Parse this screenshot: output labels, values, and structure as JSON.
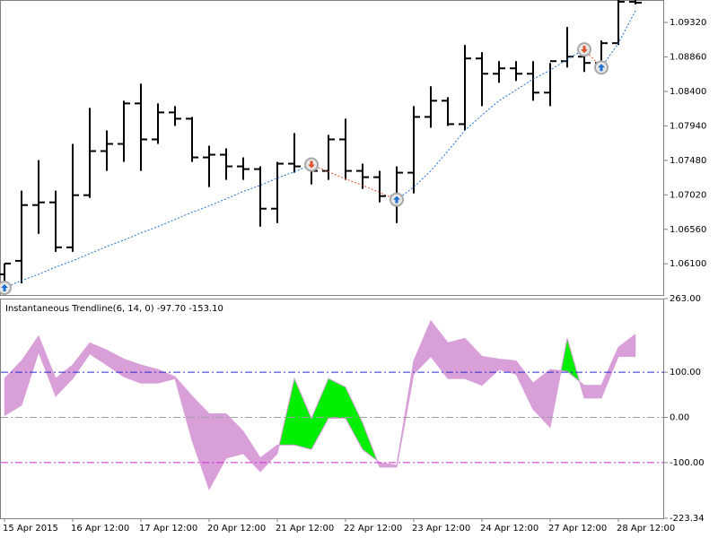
{
  "chart_data": [
    {
      "type": "ohlc",
      "categories": [
        "15 Apr 2015",
        null,
        null,
        null,
        "16 Apr 12:00",
        null,
        null,
        null,
        "17 Apr 12:00",
        null,
        null,
        null,
        "20 Apr 12:00",
        null,
        null,
        null,
        "21 Apr 12:00",
        null,
        null,
        null,
        "22 Apr 12:00",
        null,
        null,
        null,
        "23 Apr 12:00",
        null,
        null,
        null,
        "24 Apr 12:00",
        null,
        null,
        null,
        "27 Apr 12:00",
        null,
        null,
        null,
        "28 Apr 12:00",
        null
      ],
      "open": [
        1.0596,
        1.0614,
        1.06884,
        1.0692,
        1.0632,
        1.07016,
        1.07604,
        1.077,
        1.0824,
        1.0776,
        1.0812,
        1.08036,
        1.0752,
        1.07556,
        1.074,
        1.07364,
        1.06836,
        1.07436,
        1.074,
        1.0734,
        1.0776,
        1.0734,
        1.07256,
        1.07004,
        1.07316,
        1.0806,
        1.08276,
        1.07964,
        1.0884,
        1.08636,
        1.08708,
        1.08636,
        1.08384,
        1.08804,
        1.08864,
        1.0878,
        1.09044,
        1.09596
      ],
      "high": [
        1.06104,
        1.07076,
        1.07484,
        1.07076,
        1.077,
        1.0818,
        1.0788,
        1.08276,
        1.08504,
        1.0824,
        1.08204,
        1.0806,
        1.07676,
        1.0764,
        1.0752,
        1.074,
        1.0746,
        1.07844,
        1.074,
        1.0782,
        1.08036,
        1.07436,
        1.0734,
        1.074,
        1.08204,
        1.08468,
        1.08324,
        1.0902,
        1.08924,
        1.08804,
        1.08804,
        1.08804,
        1.0878,
        1.0926,
        1.089,
        1.0908,
        1.0962,
        1.0962
      ],
      "low": [
        1.05804,
        1.0584,
        1.065,
        1.0626,
        1.0626,
        1.0698,
        1.0734,
        1.0746,
        1.0734,
        1.077,
        1.0794,
        1.0746,
        1.07124,
        1.0722,
        1.0722,
        1.06596,
        1.06644,
        1.07316,
        1.0716,
        1.0722,
        1.0722,
        1.071,
        1.0692,
        1.06644,
        1.0704,
        1.07916,
        1.0794,
        1.0788,
        1.08204,
        1.08516,
        1.0854,
        1.08276,
        1.08204,
        1.0872,
        1.0866,
        1.0866,
        1.0902,
        1.0956
      ],
      "close": [
        1.06104,
        1.06884,
        1.0692,
        1.0632,
        1.07016,
        1.07604,
        1.077,
        1.0824,
        1.0776,
        1.0812,
        1.08036,
        1.0752,
        1.07556,
        1.074,
        1.07364,
        1.06836,
        1.07436,
        1.074,
        1.0734,
        1.0776,
        1.0734,
        1.07256,
        1.07004,
        1.07316,
        1.0806,
        1.08276,
        1.07964,
        1.0884,
        1.08636,
        1.08708,
        1.08636,
        1.08384,
        1.08804,
        1.08864,
        1.0878,
        1.09044,
        1.09596,
        1.09584
      ],
      "color": "#000000",
      "trend": [
        1.0578,
        1.05876,
        1.0596,
        1.06056,
        1.0614,
        1.06236,
        1.06332,
        1.06416,
        1.06512,
        1.06596,
        1.06692,
        1.06788,
        1.06872,
        1.06968,
        1.07064,
        1.07148,
        1.07244,
        1.07328,
        1.07424,
        1.07328,
        1.07232,
        1.07148,
        1.07052,
        1.06956,
        1.07124,
        1.0734,
        1.07604,
        1.0788,
        1.08084,
        1.08276,
        1.0842,
        1.08564,
        1.08684,
        1.08828,
        1.0896,
        1.0872,
        1.09044,
        1.09476
      ],
      "trend_color": "#1e70d0",
      "reverse_color": "#e0502a",
      "up_arrows": [
        1.0578,
        null,
        null,
        null,
        null,
        null,
        null,
        null,
        null,
        null,
        null,
        null,
        null,
        null,
        null,
        null,
        null,
        null,
        null,
        null,
        null,
        null,
        null,
        1.06956,
        null,
        null,
        null,
        null,
        null,
        null,
        null,
        null,
        null,
        null,
        null,
        1.0872,
        null,
        null
      ],
      "down_arrows": [
        null,
        null,
        null,
        null,
        null,
        null,
        null,
        null,
        null,
        null,
        null,
        null,
        null,
        null,
        null,
        null,
        null,
        null,
        1.07424,
        null,
        null,
        null,
        null,
        null,
        null,
        null,
        null,
        null,
        null,
        null,
        null,
        null,
        null,
        null,
        1.0896,
        null,
        null,
        null
      ],
      "up_arrow_color": "#1e70d0",
      "down_arrow_color": "#e0502a",
      "ylim": [
        1.05684,
        1.0962
      ],
      "yticks": [
        {
          "value": 1.061,
          "label": "1.06100"
        },
        {
          "value": 1.0656,
          "label": "1.06560"
        },
        {
          "value": 1.0702,
          "label": "1.07020"
        },
        {
          "value": 1.0748,
          "label": "1.07480"
        },
        {
          "value": 1.0794,
          "label": "1.07940"
        },
        {
          "value": 1.084,
          "label": "1.08400"
        },
        {
          "value": 1.0886,
          "label": "1.08860"
        },
        {
          "value": 1.0932,
          "label": "1.09320"
        }
      ]
    },
    {
      "type": "band",
      "label": "Instantaneous Trendline(6, 14, 0) -97.70 -153.10",
      "series": [
        {
          "color": "#d99fd9",
          "values": [
            4,
            27,
            145,
            47,
            86,
            141,
            116,
            90,
            76,
            76,
            86,
            -51,
            -159,
            -90,
            -80,
            -120,
            -80,
            86,
            -2,
            86,
            67,
            -12,
            -110,
            -110,
            96,
            135,
            86,
            86,
            71,
            106,
            96,
            18,
            -22,
            175,
            43,
            43,
            135,
            135
          ]
        },
        {
          "color": "#d99fd9",
          "values": [
            86,
            125,
            180,
            86,
            116,
            165,
            149,
            129,
            116,
            106,
            90,
            47,
            8,
            8,
            -31,
            -90,
            -61,
            -61,
            -71,
            -2,
            -2,
            -71,
            -100,
            -106,
            125,
            214,
            165,
            175,
            135,
            129,
            125,
            76,
            106,
            102,
            71,
            71,
            155,
            184
          ]
        }
      ],
      "up_color": "#00ee00",
      "down_color": "#d99fd9",
      "levels": [
        {
          "value": 100,
          "color": "#2a2ad0"
        },
        {
          "value": 0,
          "color": "#a0a0a0"
        },
        {
          "value": -100,
          "color": "#d02ad0"
        }
      ],
      "ylim": [
        -223.34,
        263
      ],
      "yticks": [
        {
          "value": -223.34,
          "label": "-223.34"
        },
        {
          "value": -100,
          "label": "-100.00"
        },
        {
          "value": 0,
          "label": "0.00"
        },
        {
          "value": 100,
          "label": "100.00"
        },
        {
          "value": 263,
          "label": "263.00"
        }
      ]
    }
  ]
}
